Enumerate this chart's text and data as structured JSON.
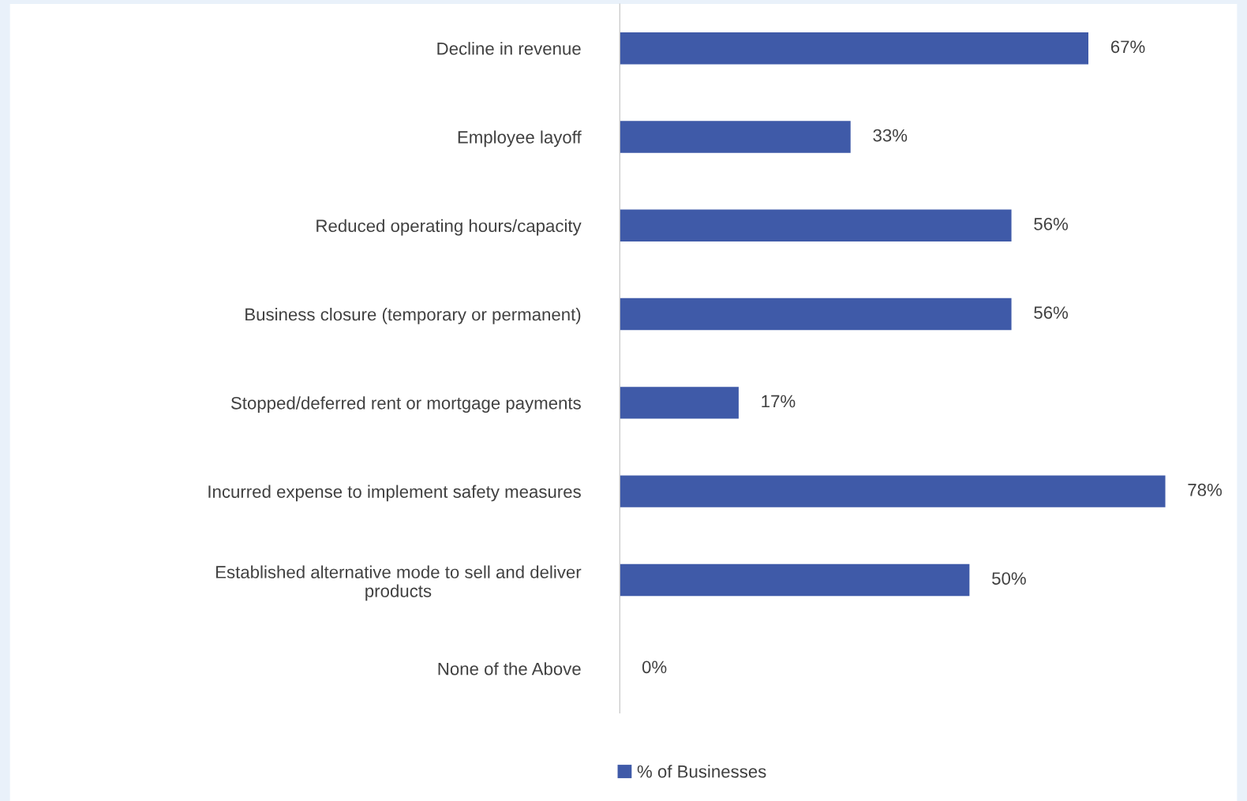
{
  "chart_data": {
    "type": "bar",
    "orientation": "horizontal",
    "categories": [
      "Decline in revenue",
      "Employee layoff",
      "Reduced operating hours/capacity",
      "Business closure (temporary or permanent)",
      "Stopped/deferred rent or mortgage payments",
      "Incurred expense to implement safety measures",
      "Established alternative mode to sell and deliver\nproducts",
      "None of the Above"
    ],
    "series": [
      {
        "name": "% of Businesses",
        "color": "#3f5aa8",
        "values": [
          67,
          33,
          56,
          56,
          17,
          78,
          50,
          0
        ],
        "value_labels": [
          "67%",
          "33%",
          "56%",
          "56%",
          "17%",
          "78%",
          "50%",
          "0%"
        ]
      }
    ],
    "legend": "bottom",
    "grid": false
  }
}
